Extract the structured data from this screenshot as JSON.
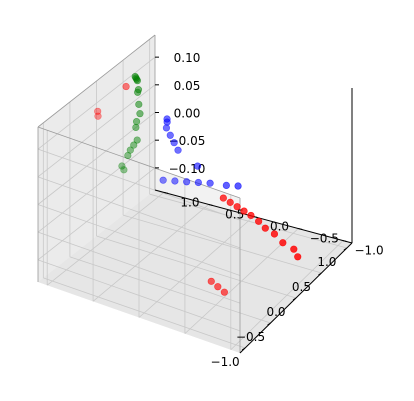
{
  "chart_data": {
    "type": "scatter",
    "projection": "3d",
    "grid": true,
    "title": "",
    "xlabel": "",
    "ylabel": "",
    "zlabel": "",
    "xlim": [
      -1.1,
      1.1
    ],
    "ylim": [
      -1.1,
      1.1
    ],
    "zlim": [
      -0.14,
      0.14
    ],
    "x_ticks": [
      -1.0,
      -0.5,
      0.0,
      0.5,
      1.0
    ],
    "y_ticks": [
      -1.0,
      -0.5,
      0.0,
      0.5,
      1.0
    ],
    "z_ticks": [
      -0.1,
      -0.05,
      0.0,
      0.05,
      0.1
    ],
    "x_tick_labels": [
      "−1.0",
      "−0.5",
      "0.0",
      "0.5",
      "1.0"
    ],
    "y_tick_labels": [
      "−1.0",
      "−0.5",
      "0.0",
      "0.5",
      "1.0"
    ],
    "z_tick_labels": [
      "−0.10",
      "−0.05",
      "0.00",
      "0.05",
      "0.10"
    ],
    "series": [
      {
        "color": "#ff0000",
        "points": [
          [
            0.3,
            -0.95,
            -0.1
          ],
          [
            0.4,
            -0.85,
            -0.1
          ],
          [
            0.45,
            -0.7,
            -0.1
          ],
          [
            0.55,
            -0.55,
            -0.1
          ],
          [
            0.6,
            -0.42,
            -0.1
          ],
          [
            0.68,
            -0.3,
            -0.1
          ],
          [
            0.74,
            -0.18,
            -0.1
          ],
          [
            0.78,
            -0.08,
            -0.1
          ],
          [
            0.82,
            0.02,
            -0.1
          ],
          [
            0.86,
            0.12,
            -0.1
          ],
          [
            0.9,
            0.22,
            -0.1
          ],
          [
            -0.6,
            -0.65,
            -0.1
          ],
          [
            -0.55,
            -0.55,
            -0.1
          ],
          [
            -0.5,
            -0.45,
            -0.1
          ],
          [
            -0.4,
            0.85,
            0.12
          ],
          [
            -0.32,
            0.9,
            0.12
          ],
          [
            0.25,
            0.92,
            0.12
          ]
        ]
      },
      {
        "color": "#008000",
        "points": [
          [
            -0.95,
            0.25,
            0.1
          ],
          [
            -0.9,
            0.3,
            0.1
          ],
          [
            -0.7,
            0.35,
            0.1
          ],
          [
            -0.6,
            0.38,
            0.1
          ],
          [
            -0.5,
            0.4,
            0.1
          ],
          [
            -0.4,
            0.42,
            0.1
          ],
          [
            -0.2,
            0.55,
            0.1
          ],
          [
            -0.1,
            0.6,
            0.1
          ],
          [
            0.05,
            0.65,
            0.1
          ],
          [
            0.2,
            0.75,
            0.1
          ],
          [
            0.4,
            0.88,
            0.1
          ],
          [
            0.45,
            0.9,
            0.1
          ],
          [
            0.6,
            1.0,
            0.1
          ],
          [
            0.62,
            1.02,
            0.1
          ],
          [
            0.64,
            1.04,
            0.1
          ],
          [
            0.66,
            1.06,
            0.1
          ]
        ]
      },
      {
        "color": "#0000ff",
        "points": [
          [
            -0.9,
            -0.15,
            0.1
          ],
          [
            -0.85,
            -0.25,
            0.1
          ],
          [
            -0.8,
            -0.35,
            0.1
          ],
          [
            -0.75,
            -0.45,
            0.1
          ],
          [
            -0.7,
            -0.55,
            0.1
          ],
          [
            -0.65,
            -0.7,
            0.1
          ],
          [
            -0.6,
            -0.8,
            0.1
          ],
          [
            -0.5,
            -0.3,
            0.1
          ],
          [
            -0.35,
            0.0,
            0.1
          ],
          [
            -0.25,
            0.1,
            0.1
          ],
          [
            -0.15,
            0.2,
            0.1
          ],
          [
            -0.05,
            0.3,
            0.1
          ],
          [
            0.05,
            0.35,
            0.1
          ],
          [
            0.1,
            0.38,
            0.1
          ]
        ]
      }
    ]
  }
}
